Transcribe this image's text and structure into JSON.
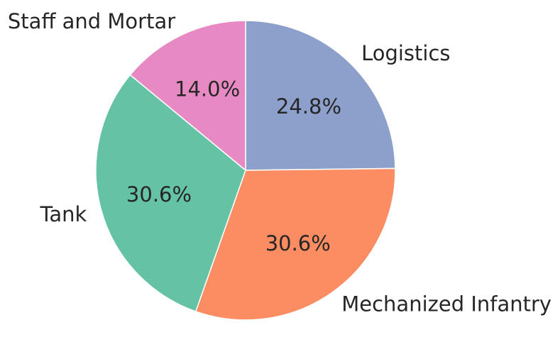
{
  "chart_data": {
    "type": "pie",
    "title": "",
    "categories": [
      "Logistics",
      "Mechanized Infantry",
      "Tank",
      "Staff and Mortar"
    ],
    "values": [
      24.8,
      30.6,
      30.6,
      14.0
    ],
    "labels": [
      "24.8%",
      "30.6%",
      "30.6%",
      "14.0%"
    ],
    "colors": [
      "#8da0cb",
      "#fc8d62",
      "#66c2a5",
      "#e78ac3"
    ],
    "start_angle_deg": 90,
    "direction": "clockwise",
    "legend": "none"
  }
}
